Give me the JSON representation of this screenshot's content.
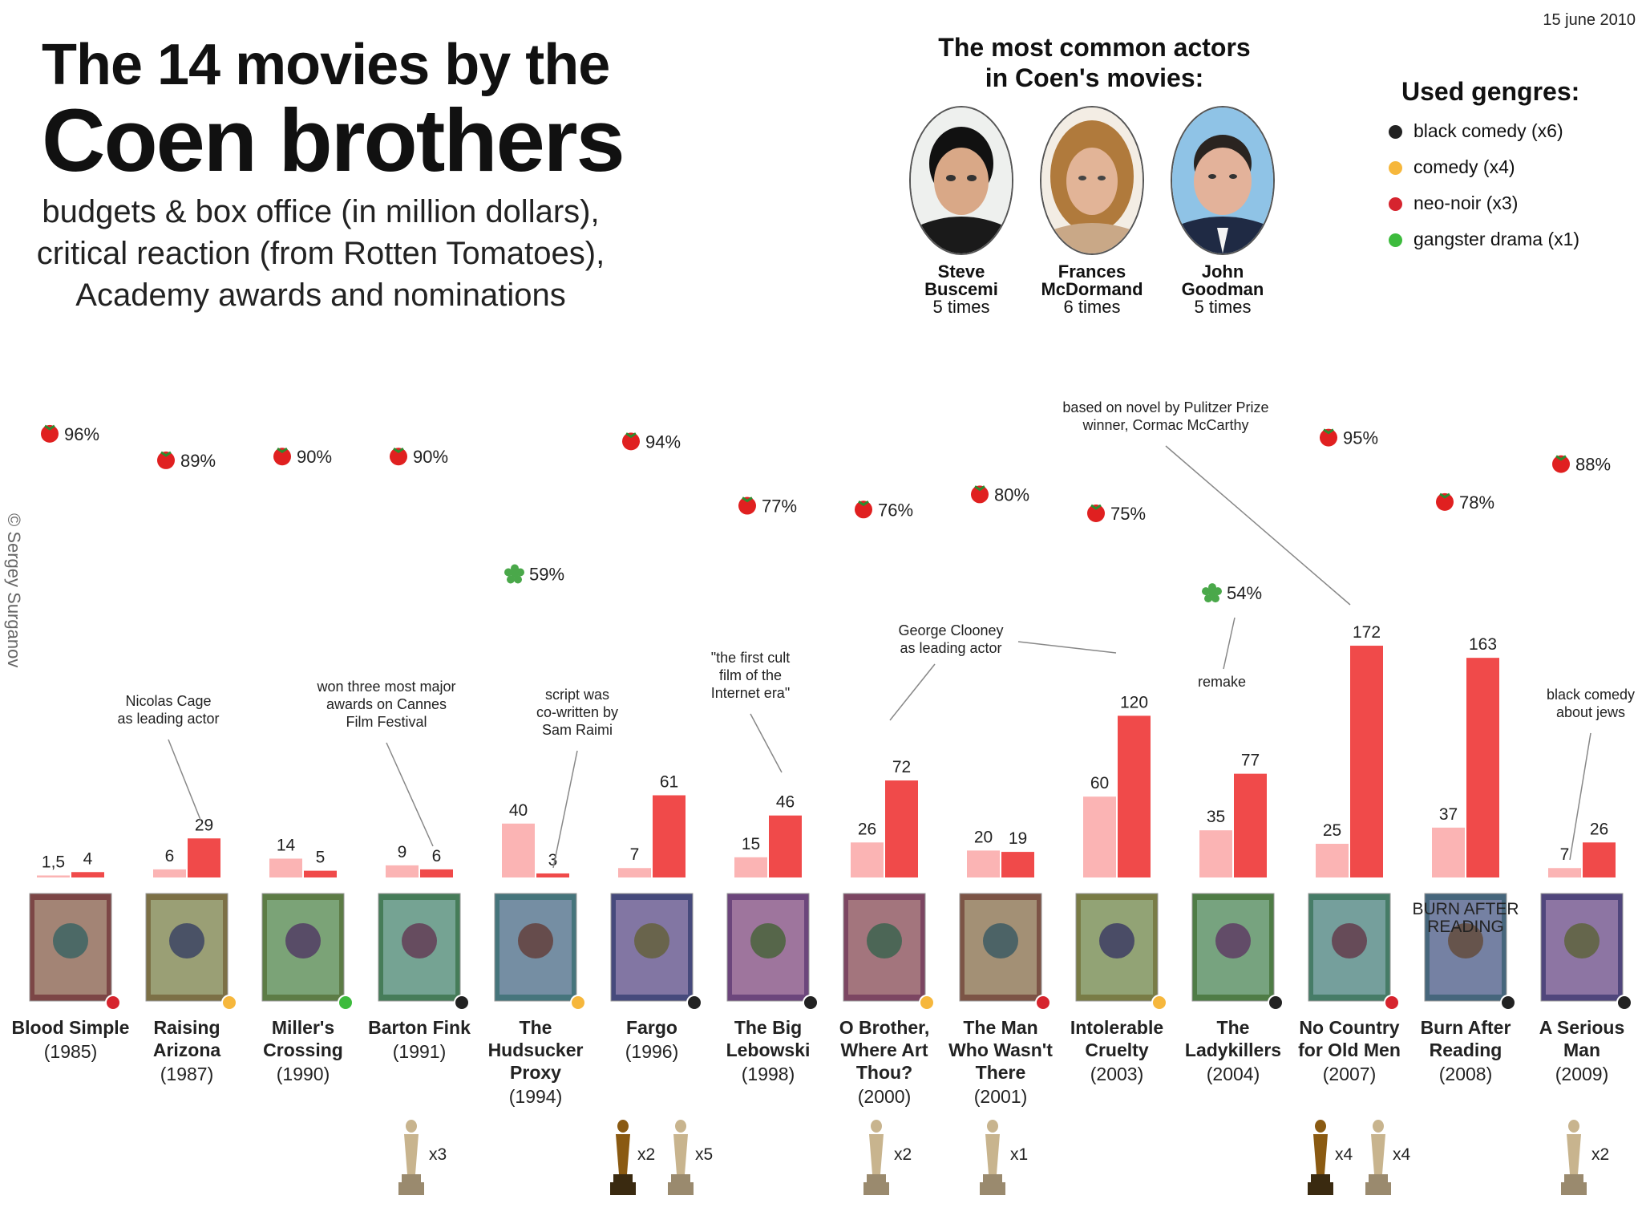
{
  "header": {
    "title_line1": "The 14 movies by the",
    "title_line2": "Coen brothers",
    "subtitle": [
      "budgets & box office (in million dollars),",
      "critical reaction (from Rotten Tomatoes),",
      "Academy awards and nominations"
    ],
    "date": "15 june 2010",
    "credit": "© Sergey Surganov"
  },
  "actors": {
    "title": [
      "The most common actors",
      "in Coen's movies:"
    ],
    "list": [
      {
        "name": [
          "Steve",
          "Buscemi"
        ],
        "times": "5 times"
      },
      {
        "name": [
          "Frances",
          "McDormand"
        ],
        "times": "6 times"
      },
      {
        "name": [
          "John",
          "Goodman"
        ],
        "times": "5 times"
      }
    ]
  },
  "genres": {
    "title": "Used gengres:",
    "items": [
      {
        "label": "black comedy (x6)",
        "color": "#222222"
      },
      {
        "label": "comedy (x4)",
        "color": "#f6b73c"
      },
      {
        "label": "neo-noir (x3)",
        "color": "#d6242e"
      },
      {
        "label": "gangster drama (x1)",
        "color": "#3dbb3d"
      }
    ]
  },
  "colors": {
    "budget": "#fbb4b4",
    "box_office": "#f04a4a",
    "fresh": "#e02020",
    "rotten": "#4aa84a"
  },
  "chart_data": {
    "type": "bar",
    "series_names": [
      "budget",
      "box office"
    ],
    "movies": [
      {
        "title": [
          "Blood Simple"
        ],
        "year": "(1985)",
        "budget": 1.5,
        "budget_label": "1,5",
        "box": 4,
        "box_label": "4",
        "rt": 96,
        "rt_label": "96%",
        "fresh": true,
        "genre": "neo-noir",
        "oscars_won": "",
        "oscars_nom": "",
        "note": ""
      },
      {
        "title": [
          "Raising",
          "Arizona"
        ],
        "year": "(1987)",
        "budget": 6,
        "budget_label": "6",
        "box": 29,
        "box_label": "29",
        "rt": 89,
        "rt_label": "89%",
        "fresh": true,
        "genre": "comedy",
        "oscars_won": "",
        "oscars_nom": "",
        "note": [
          "Nicolas Cage",
          "as leading actor"
        ]
      },
      {
        "title": [
          "Miller's",
          "Crossing"
        ],
        "year": "(1990)",
        "budget": 14,
        "budget_label": "14",
        "box": 5,
        "box_label": "5",
        "rt": 90,
        "rt_label": "90%",
        "fresh": true,
        "genre": "gangster drama",
        "oscars_won": "",
        "oscars_nom": "",
        "note": ""
      },
      {
        "title": [
          "Barton Fink"
        ],
        "year": "(1991)",
        "budget": 9,
        "budget_label": "9",
        "box": 6,
        "box_label": "6",
        "rt": 90,
        "rt_label": "90%",
        "fresh": true,
        "genre": "black comedy",
        "oscars_won": "",
        "oscars_nom": "x3",
        "note": [
          "won three most major",
          "awards on Cannes",
          "Film Festival"
        ]
      },
      {
        "title": [
          "The",
          "Hudsucker",
          "Proxy"
        ],
        "year": "(1994)",
        "budget": 40,
        "budget_label": "40",
        "box": 3,
        "box_label": "3",
        "rt": 59,
        "rt_label": "59%",
        "fresh": false,
        "genre": "comedy",
        "oscars_won": "",
        "oscars_nom": "",
        "note": [
          "script was",
          "co-written by",
          "Sam Raimi"
        ]
      },
      {
        "title": [
          "Fargo"
        ],
        "year": "(1996)",
        "budget": 7,
        "budget_label": "7",
        "box": 61,
        "box_label": "61",
        "rt": 94,
        "rt_label": "94%",
        "fresh": true,
        "genre": "black comedy",
        "oscars_won": "x2",
        "oscars_nom": "x5",
        "note": ""
      },
      {
        "title": [
          "The Big",
          "Lebowski"
        ],
        "year": "(1998)",
        "budget": 15,
        "budget_label": "15",
        "box": 46,
        "box_label": "46",
        "rt": 77,
        "rt_label": "77%",
        "fresh": true,
        "genre": "black comedy",
        "oscars_won": "",
        "oscars_nom": "",
        "note": [
          "\"the first cult",
          "film of the",
          "Internet era\""
        ]
      },
      {
        "title": [
          "O Brother,",
          "Where Art",
          "Thou?"
        ],
        "year": "(2000)",
        "budget": 26,
        "budget_label": "26",
        "box": 72,
        "box_label": "72",
        "rt": 76,
        "rt_label": "76%",
        "fresh": true,
        "genre": "comedy",
        "oscars_won": "",
        "oscars_nom": "x2",
        "note": ""
      },
      {
        "title": [
          "The Man",
          "Who Wasn't",
          "There"
        ],
        "year": "(2001)",
        "budget": 20,
        "budget_label": "20",
        "box": 19,
        "box_label": "19",
        "rt": 80,
        "rt_label": "80%",
        "fresh": true,
        "genre": "neo-noir",
        "oscars_won": "",
        "oscars_nom": "x1",
        "note": ""
      },
      {
        "title": [
          "Intolerable",
          "Cruelty"
        ],
        "year": "(2003)",
        "budget": 60,
        "budget_label": "60",
        "box": 120,
        "box_label": "120",
        "rt": 75,
        "rt_label": "75%",
        "fresh": true,
        "genre": "comedy",
        "oscars_won": "",
        "oscars_nom": "",
        "note": [
          "George Clooney",
          "as leading actor"
        ]
      },
      {
        "title": [
          "The",
          "Ladykillers"
        ],
        "year": "(2004)",
        "budget": 35,
        "budget_label": "35",
        "box": 77,
        "box_label": "77",
        "rt": 54,
        "rt_label": "54%",
        "fresh": false,
        "genre": "black comedy",
        "oscars_won": "",
        "oscars_nom": "",
        "note": [
          "remake"
        ]
      },
      {
        "title": [
          "No Country",
          "for Old Men"
        ],
        "year": "(2007)",
        "budget": 25,
        "budget_label": "25",
        "box": 172,
        "box_label": "172",
        "rt": 95,
        "rt_label": "95%",
        "fresh": true,
        "genre": "neo-noir",
        "oscars_won": "x4",
        "oscars_nom": "x4",
        "note": [
          "based on novel by Pulitzer Prize",
          "winner, Cormac McCarthy"
        ]
      },
      {
        "title": [
          "Burn After",
          "Reading"
        ],
        "year": "(2008)",
        "budget": 37,
        "budget_label": "37",
        "box": 163,
        "box_label": "163",
        "rt": 78,
        "rt_label": "78%",
        "fresh": true,
        "genre": "black comedy",
        "oscars_won": "",
        "oscars_nom": "",
        "note": ""
      },
      {
        "title": [
          "A Serious",
          "Man"
        ],
        "year": "(2009)",
        "budget": 7,
        "budget_label": "7",
        "box": 26,
        "box_label": "26",
        "rt": 88,
        "rt_label": "88%",
        "fresh": true,
        "genre": "black comedy",
        "oscars_won": "",
        "oscars_nom": "x2",
        "note": [
          "black comedy",
          "about jews"
        ]
      }
    ],
    "poster_text": {
      "burn_after_reading": [
        "BURN AFTER",
        "READING"
      ]
    }
  }
}
